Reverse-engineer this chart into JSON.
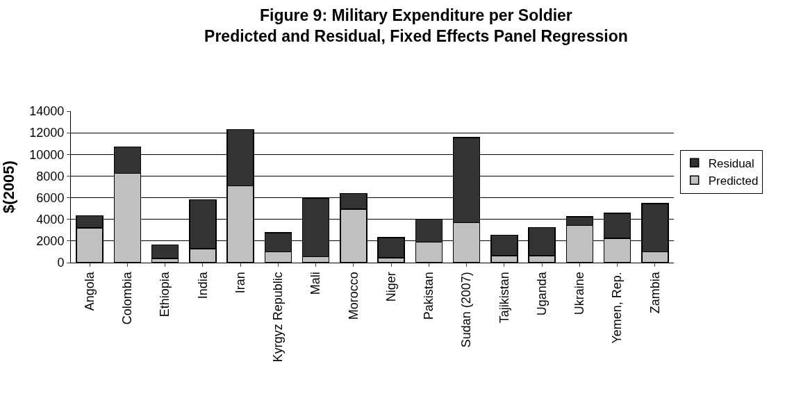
{
  "chart_data": {
    "type": "bar",
    "stacked": true,
    "title": "Figure 9: Military Expenditure per Soldier\nPredicted and Residual, Fixed Effects Panel Regression",
    "ylabel": "$(2005)",
    "categories": [
      "Angola",
      "Colombia",
      "Ethiopia",
      "India",
      "Iran",
      "Kyrgyz Republic",
      "Mali",
      "Morocco",
      "Niger",
      "Pakistan",
      "Sudan (2007)",
      "Tajikistan",
      "Uganda",
      "Ukraine",
      "Yemen, Rep.",
      "Zambia"
    ],
    "series": [
      {
        "name": "Predicted",
        "color": "#c0c0c0",
        "values": [
          3200,
          8250,
          400,
          1300,
          7100,
          1000,
          550,
          4950,
          450,
          1900,
          3700,
          650,
          650,
          3450,
          2250,
          1000
        ]
      },
      {
        "name": "Residual",
        "color": "#333333",
        "values": [
          1150,
          2450,
          1250,
          4500,
          5200,
          1750,
          5400,
          1450,
          1850,
          2100,
          7850,
          1900,
          2600,
          800,
          2300,
          4450
        ]
      }
    ],
    "ylim": [
      0,
      14000
    ],
    "yticks": [
      0,
      2000,
      4000,
      6000,
      8000,
      10000,
      12000,
      14000
    ],
    "grid": "y",
    "legend": "right"
  }
}
